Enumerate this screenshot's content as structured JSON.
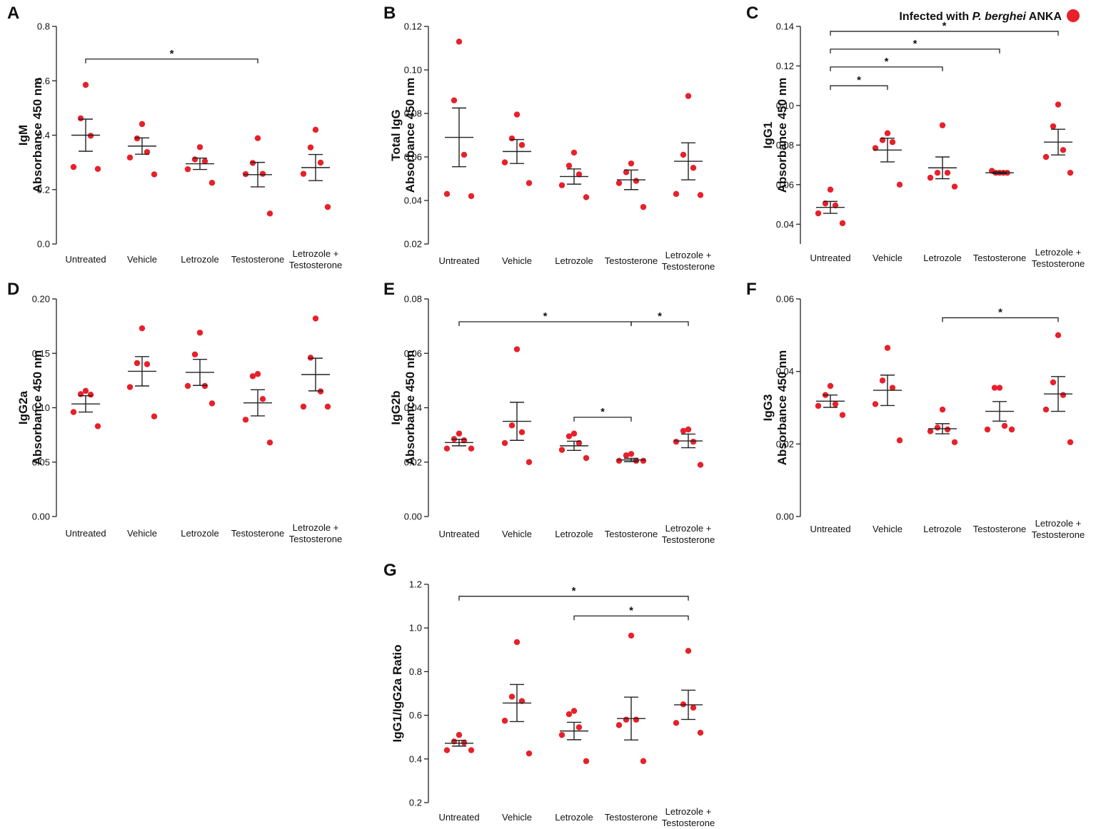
{
  "legend": {
    "prefix": "Infected with ",
    "species": "P. berghei",
    "suffix": " ANKA",
    "marker_color": "#e8202a"
  },
  "colors": {
    "point": "#e8202a",
    "axis": "#222222",
    "text": "#111111"
  },
  "chart_data": [
    {
      "id": "A",
      "type": "scatter",
      "ylabel_lines": [
        "IgM",
        "Absorbance 450 nm"
      ],
      "yticks": [
        "0.0",
        "0.2",
        "0.4",
        "0.6",
        "0.8"
      ],
      "ylim": [
        0,
        0.8
      ],
      "categories": [
        [
          "Untreated"
        ],
        [
          "Vehicle"
        ],
        [
          "Letrozole"
        ],
        [
          "Testosterone"
        ],
        [
          "Letrozole +",
          "Testosterone"
        ]
      ],
      "points": [
        [
          0.585,
          0.462,
          0.398,
          0.283,
          0.276
        ],
        [
          0.441,
          0.388,
          0.338,
          0.318,
          0.256
        ],
        [
          0.356,
          0.311,
          0.304,
          0.275,
          0.225
        ],
        [
          0.389,
          0.298,
          0.258,
          0.257,
          0.112
        ],
        [
          0.42,
          0.355,
          0.299,
          0.258,
          0.136
        ]
      ],
      "means": [
        0.4,
        0.36,
        0.295,
        0.255,
        0.281
      ],
      "sems": [
        0.059,
        0.03,
        0.021,
        0.045,
        0.048
      ],
      "sig": [
        {
          "from": 0,
          "to": 3,
          "y": 0.68,
          "label": "*"
        }
      ]
    },
    {
      "id": "B",
      "type": "scatter",
      "ylabel_lines": [
        "Total IgG",
        "Absorbance 450 nm"
      ],
      "yticks": [
        "0.02",
        "0.04",
        "0.06",
        "0.08",
        "0.10",
        "0.12"
      ],
      "ylim": [
        0.02,
        0.12
      ],
      "categories": [
        [
          "Untreated"
        ],
        [
          "Vehicle"
        ],
        [
          "Letrozole"
        ],
        [
          "Testosterone"
        ],
        [
          "Letrozole +",
          "Testosterone"
        ]
      ],
      "points": [
        [
          0.113,
          0.086,
          0.061,
          0.043,
          0.042
        ],
        [
          0.0795,
          0.0685,
          0.0655,
          0.0575,
          0.048
        ],
        [
          0.062,
          0.056,
          0.052,
          0.047,
          0.0415
        ],
        [
          0.057,
          0.053,
          0.049,
          0.048,
          0.037
        ],
        [
          0.088,
          0.061,
          0.055,
          0.043,
          0.0425
        ]
      ],
      "means": [
        0.069,
        0.0625,
        0.051,
        0.0495,
        0.058
      ],
      "sems": [
        0.0135,
        0.0055,
        0.0035,
        0.0045,
        0.0085
      ],
      "sig": []
    },
    {
      "id": "C",
      "type": "scatter",
      "ylabel_lines": [
        "IgG1",
        "Absorbance 450 nm"
      ],
      "yticks": [
        "0.04",
        "0.06",
        "0.08",
        "0.10",
        "0.12",
        "0.14"
      ],
      "ylim": [
        0.03,
        0.14
      ],
      "categories": [
        [
          "Untreated"
        ],
        [
          "Vehicle"
        ],
        [
          "Letrozole"
        ],
        [
          "Testosterone"
        ],
        [
          "Letrozole +",
          "Testosterone"
        ]
      ],
      "points": [
        [
          0.0575,
          0.0505,
          0.0495,
          0.0455,
          0.0405
        ],
        [
          0.086,
          0.0825,
          0.0815,
          0.0785,
          0.06
        ],
        [
          0.09,
          0.066,
          0.066,
          0.0635,
          0.059
        ],
        [
          0.067,
          0.066,
          0.066,
          0.066,
          0.066
        ],
        [
          0.1005,
          0.0895,
          0.0775,
          0.074,
          0.066
        ]
      ],
      "means": [
        0.0485,
        0.0775,
        0.0685,
        0.066,
        0.0815
      ],
      "sems": [
        0.003,
        0.006,
        0.0055,
        0.0004,
        0.0065
      ],
      "sig": [
        {
          "from": 0,
          "to": 1,
          "y": 0.11,
          "label": "*"
        },
        {
          "from": 0,
          "to": 2,
          "y": 0.1195,
          "label": "*"
        },
        {
          "from": 0,
          "to": 3,
          "y": 0.1285,
          "label": "*"
        },
        {
          "from": 0,
          "to": 4,
          "y": 0.1375,
          "label": "*"
        }
      ]
    },
    {
      "id": "D",
      "type": "scatter",
      "ylabel_lines": [
        "IgG2a",
        "Absorbance 450 nm"
      ],
      "yticks": [
        "0.00",
        "0.05",
        "0.10",
        "0.15",
        "0.20"
      ],
      "ylim": [
        0,
        0.2
      ],
      "categories": [
        [
          "Untreated"
        ],
        [
          "Vehicle"
        ],
        [
          "Letrozole"
        ],
        [
          "Testosterone"
        ],
        [
          "Letrozole +",
          "Testosterone"
        ]
      ],
      "points": [
        [
          0.1155,
          0.1125,
          0.112,
          0.096,
          0.083
        ],
        [
          0.173,
          0.141,
          0.14,
          0.119,
          0.092
        ],
        [
          0.169,
          0.149,
          0.12,
          0.12,
          0.104
        ],
        [
          0.131,
          0.129,
          0.108,
          0.089,
          0.068
        ],
        [
          0.182,
          0.146,
          0.115,
          0.101,
          0.101
        ]
      ],
      "means": [
        0.1035,
        0.1335,
        0.1325,
        0.1045,
        0.1305
      ],
      "sems": [
        0.0075,
        0.0135,
        0.012,
        0.012,
        0.015
      ],
      "sig": []
    },
    {
      "id": "E",
      "type": "scatter",
      "ylabel_lines": [
        "IgG2b",
        "Absorbance 450 nm"
      ],
      "yticks": [
        "0.00",
        "0.02",
        "0.04",
        "0.06",
        "0.08"
      ],
      "ylim": [
        0,
        0.08
      ],
      "categories": [
        [
          "Untreated"
        ],
        [
          "Vehicle"
        ],
        [
          "Letrozole"
        ],
        [
          "Testosterone"
        ],
        [
          "Letrozole +",
          "Testosterone"
        ]
      ],
      "points": [
        [
          0.0305,
          0.0285,
          0.028,
          0.025,
          0.025
        ],
        [
          0.0615,
          0.0335,
          0.031,
          0.027,
          0.02
        ],
        [
          0.0305,
          0.0295,
          0.027,
          0.0245,
          0.0215
        ],
        [
          0.023,
          0.0225,
          0.0205,
          0.0205,
          0.0205
        ],
        [
          0.032,
          0.0315,
          0.0275,
          0.0275,
          0.019
        ]
      ],
      "means": [
        0.0272,
        0.035,
        0.026,
        0.0208,
        0.0278
      ],
      "sems": [
        0.0012,
        0.007,
        0.0017,
        0.0006,
        0.0025
      ],
      "sig": [
        {
          "from": 0,
          "to": 3,
          "y": 0.0716,
          "label": "*"
        },
        {
          "from": 3,
          "to": 4,
          "y": 0.0716,
          "label": "*"
        },
        {
          "from": 2,
          "to": 3,
          "y": 0.0365,
          "label": "*"
        }
      ]
    },
    {
      "id": "F",
      "type": "scatter",
      "ylabel_lines": [
        "IgG3",
        "Absorbance 450 nm"
      ],
      "yticks": [
        "0.00",
        "0.02",
        "0.04",
        "0.06"
      ],
      "ylim": [
        0,
        0.06
      ],
      "categories": [
        [
          "Untreated"
        ],
        [
          "Vehicle"
        ],
        [
          "Letrozole"
        ],
        [
          "Testosterone"
        ],
        [
          "Letrozole +",
          "Testosterone"
        ]
      ],
      "points": [
        [
          0.036,
          0.0335,
          0.0305,
          0.031,
          0.028
        ],
        [
          0.0465,
          0.0375,
          0.0355,
          0.031,
          0.021
        ],
        [
          0.0295,
          0.0245,
          0.024,
          0.0235,
          0.0205
        ],
        [
          0.0355,
          0.0355,
          0.025,
          0.024,
          0.024
        ],
        [
          0.05,
          0.037,
          0.0335,
          0.0295,
          0.0205
        ]
      ],
      "means": [
        0.0318,
        0.0348,
        0.0242,
        0.029,
        0.0338
      ],
      "sems": [
        0.0017,
        0.0042,
        0.0014,
        0.0027,
        0.0048
      ],
      "sig": [
        {
          "from": 2,
          "to": 4,
          "y": 0.0548,
          "label": "*"
        }
      ]
    },
    {
      "id": "G",
      "type": "scatter",
      "ylabel_lines": [
        "IgG1/IgG2a Ratio"
      ],
      "yticks": [
        "0.2",
        "0.4",
        "0.6",
        "0.8",
        "1.0",
        "1.2"
      ],
      "ylim": [
        0.2,
        1.2
      ],
      "categories": [
        [
          "Untreated"
        ],
        [
          "Vehicle"
        ],
        [
          "Letrozole"
        ],
        [
          "Testosterone"
        ],
        [
          "Letrozole +",
          "Testosterone"
        ]
      ],
      "points": [
        [
          0.51,
          0.48,
          0.475,
          0.44,
          0.44
        ],
        [
          0.935,
          0.685,
          0.665,
          0.575,
          0.425
        ],
        [
          0.62,
          0.605,
          0.545,
          0.51,
          0.39
        ],
        [
          0.965,
          0.58,
          0.58,
          0.555,
          0.39
        ],
        [
          0.895,
          0.65,
          0.635,
          0.565,
          0.52
        ]
      ],
      "means": [
        0.472,
        0.656,
        0.528,
        0.585,
        0.648
      ],
      "sems": [
        0.013,
        0.085,
        0.04,
        0.098,
        0.067
      ],
      "sig": [
        {
          "from": 0,
          "to": 4,
          "y": 1.145,
          "label": "*"
        },
        {
          "from": 2,
          "to": 4,
          "y": 1.055,
          "label": "*"
        }
      ]
    }
  ]
}
